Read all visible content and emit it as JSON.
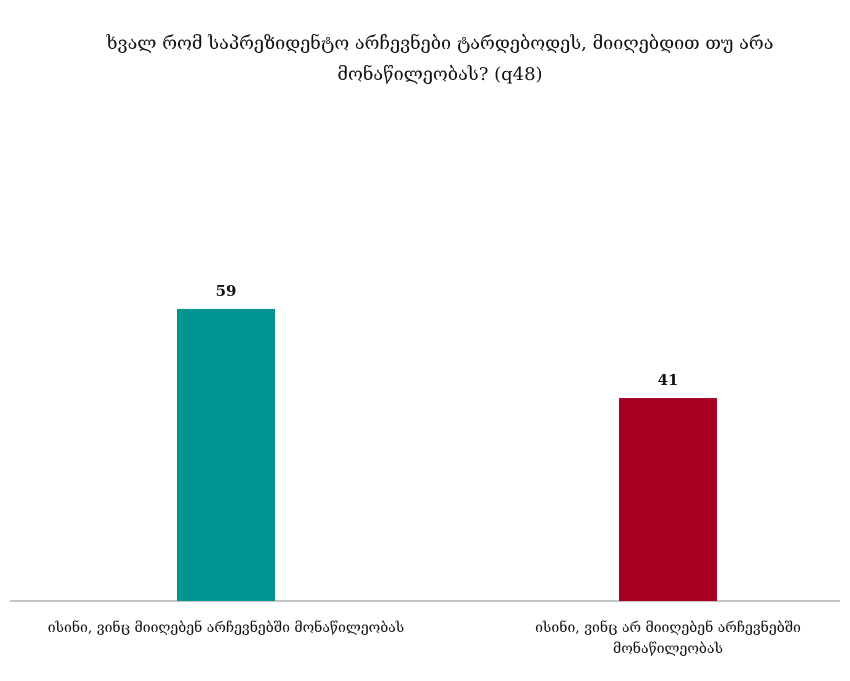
{
  "chart_data": {
    "type": "bar",
    "title": "ხვალ რომ საპრეზიდენტო არჩევნები ტარდებოდეს, მიიღებდით თუ არა მონაწილეობას? (q48)",
    "categories": [
      "ისინი, ვინც მიიღებენ არჩევნებში მონაწილეობას",
      "ისინი, ვინც არ მიიღებენ არჩევნებში მონაწილეობას"
    ],
    "values": [
      59,
      41
    ],
    "colors": [
      "#009590",
      "#a50021"
    ]
  }
}
